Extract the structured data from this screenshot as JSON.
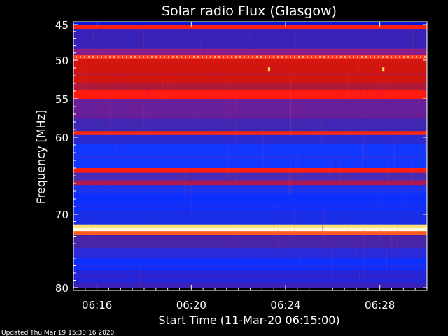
{
  "chart_data": {
    "type": "heatmap",
    "title": "Solar radio Flux (Glasgow)",
    "xlabel": "Start Time (11-Mar-20 06:15:00)",
    "ylabel": "Frequency [MHz]",
    "x_ticks": [
      "06:16",
      "06:20",
      "06:24",
      "06:28"
    ],
    "x_tick_minutes": [
      1,
      5,
      9,
      13
    ],
    "x_range_minutes": [
      0,
      15
    ],
    "y_ticks": [
      45,
      50,
      55,
      60,
      70,
      80
    ],
    "y_tick_labels": [
      "45",
      "50",
      "55",
      "60",
      "70",
      "80"
    ],
    "y_range_mhz": [
      44,
      80
    ],
    "footer": "Updated Thu Mar 19 15:30:16 2020",
    "colors": {
      "background": "#000000",
      "low": "#1a1aff",
      "mid": "#6a1f9a",
      "high": "#ff1a1a",
      "peak": "#fff7c0"
    },
    "bands": [
      {
        "f0": 44.0,
        "f1": 45.0,
        "color": "#0b16d8"
      },
      {
        "f0": 45.0,
        "f1": 45.6,
        "color": "#ff2010"
      },
      {
        "f0": 45.6,
        "f1": 48.4,
        "color": "#3a22b8"
      },
      {
        "f0": 48.4,
        "f1": 49.3,
        "color": "#8c1c88"
      },
      {
        "f0": 49.3,
        "f1": 49.9,
        "color": "#ff3a20"
      },
      {
        "f0": 49.9,
        "f1": 52.9,
        "color": "#d3150f"
      },
      {
        "f0": 52.9,
        "f1": 53.9,
        "color": "#b01a3a"
      },
      {
        "f0": 53.9,
        "f1": 55.0,
        "color": "#ff1b0f"
      },
      {
        "f0": 55.0,
        "f1": 57.6,
        "color": "#6a1f9a"
      },
      {
        "f0": 57.6,
        "f1": 59.2,
        "color": "#3f27b4"
      },
      {
        "f0": 59.2,
        "f1": 59.7,
        "color": "#ff2a10"
      },
      {
        "f0": 59.7,
        "f1": 60.8,
        "color": "#2b2ad0"
      },
      {
        "f0": 60.8,
        "f1": 64.0,
        "color": "#1238ff"
      },
      {
        "f0": 64.0,
        "f1": 64.6,
        "color": "#ff1e12"
      },
      {
        "f0": 64.6,
        "f1": 65.6,
        "color": "#4a2cb4"
      },
      {
        "f0": 65.6,
        "f1": 66.2,
        "color": "#b01a50"
      },
      {
        "f0": 66.2,
        "f1": 67.3,
        "color": "#1b34f0"
      },
      {
        "f0": 67.3,
        "f1": 69.5,
        "color": "#0d30ff"
      },
      {
        "f0": 69.5,
        "f1": 71.4,
        "color": "#1a2ee8"
      },
      {
        "f0": 71.4,
        "f1": 71.9,
        "color": "#ffe070"
      },
      {
        "f0": 71.9,
        "f1": 72.3,
        "color": "#fffbe0"
      },
      {
        "f0": 72.3,
        "f1": 72.8,
        "color": "#ff5a20"
      },
      {
        "f0": 72.8,
        "f1": 74.6,
        "color": "#4a24a8"
      },
      {
        "f0": 74.6,
        "f1": 76.0,
        "color": "#2a2ad8"
      },
      {
        "f0": 76.0,
        "f1": 77.6,
        "color": "#0d30ff"
      },
      {
        "f0": 77.6,
        "f1": 79.4,
        "color": "#2424d8"
      },
      {
        "f0": 79.4,
        "f1": 80.0,
        "color": "#3a22b8"
      }
    ],
    "bursts": [
      {
        "t": 8.3,
        "f": 51.2,
        "color": "#ffee50"
      },
      {
        "t": 13.15,
        "f": 51.2,
        "color": "#ffee50"
      }
    ]
  }
}
